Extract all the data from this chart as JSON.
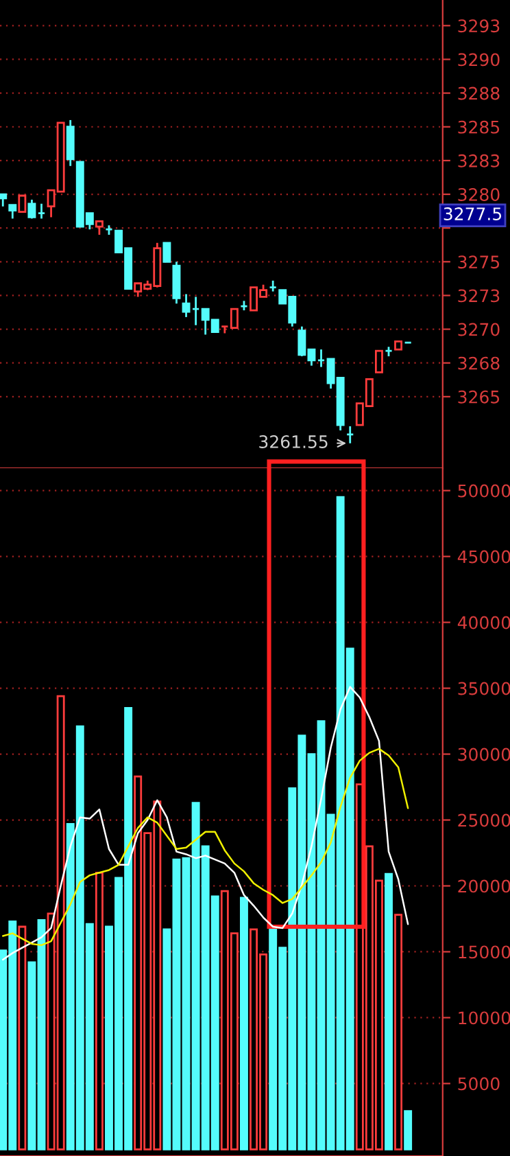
{
  "chart_data": [
    {
      "type": "candlestick",
      "tick_labels": "y",
      "grid": "y",
      "categories": [
        null,
        null,
        null,
        null,
        null,
        null,
        null,
        null,
        null,
        null,
        null,
        null,
        null,
        null,
        null,
        null,
        null,
        null,
        null,
        null,
        null,
        null,
        null,
        null,
        null,
        null,
        null,
        null,
        null,
        null,
        null,
        null,
        null,
        null,
        null,
        null,
        null,
        null,
        null,
        null,
        null,
        null,
        null
      ],
      "ohlc": [
        [
          3280.0,
          3280.0,
          3279.1,
          3279.7
        ],
        [
          3279.2,
          3279.2,
          3278.2,
          3278.8
        ],
        [
          3278.7,
          3279.9,
          3278.7,
          3279.9
        ],
        [
          3279.3,
          3279.6,
          3278.2,
          3278.3
        ],
        [
          3278.6,
          3279.3,
          3278.2,
          3278.6
        ],
        [
          3279.1,
          3280.3,
          3278.3,
          3280.3
        ],
        [
          3280.2,
          3285.3,
          3280.2,
          3285.3
        ],
        [
          3285.0,
          3285.5,
          3282.1,
          3282.6
        ],
        [
          3282.4,
          3282.4,
          3277.6,
          3277.6
        ],
        [
          3278.6,
          3278.6,
          3277.4,
          3277.8
        ],
        [
          3277.6,
          3278.0,
          3277.0,
          3278.0
        ],
        [
          3277.4,
          3277.7,
          3277.0,
          3277.4
        ],
        [
          3277.3,
          3277.3,
          3275.7,
          3275.7
        ],
        [
          3276.0,
          3276.0,
          3273.0,
          3273.0
        ],
        [
          3272.8,
          3273.4,
          3272.4,
          3273.4
        ],
        [
          3273.0,
          3273.6,
          3272.9,
          3273.3
        ],
        [
          3273.2,
          3276.4,
          3273.1,
          3276.0
        ],
        [
          3276.4,
          3276.4,
          3275.0,
          3275.0
        ],
        [
          3274.7,
          3275.0,
          3271.9,
          3272.3
        ],
        [
          3271.9,
          3272.6,
          3270.9,
          3271.3
        ],
        [
          3271.5,
          3272.4,
          3270.3,
          3271.5
        ],
        [
          3271.5,
          3271.5,
          3269.6,
          3270.7
        ],
        [
          3270.7,
          3270.7,
          3269.8,
          3269.8
        ],
        [
          3270.2,
          3270.2,
          3269.7,
          3270.2
        ],
        [
          3270.1,
          3271.5,
          3270.1,
          3271.5
        ],
        [
          3271.7,
          3272.1,
          3271.4,
          3271.7
        ],
        [
          3271.4,
          3273.1,
          3271.4,
          3273.1
        ],
        [
          3272.4,
          3273.3,
          3272.4,
          3272.9
        ],
        [
          3273.1,
          3273.6,
          3272.8,
          3273.1
        ],
        [
          3272.9,
          3272.9,
          3271.9,
          3271.9
        ],
        [
          3272.4,
          3272.4,
          3270.2,
          3270.5
        ],
        [
          3269.9,
          3270.2,
          3268.0,
          3268.1
        ],
        [
          3268.5,
          3268.5,
          3267.3,
          3267.7
        ],
        [
          3267.7,
          3268.5,
          3267.2,
          3267.7
        ],
        [
          3267.8,
          3267.8,
          3265.6,
          3266.0
        ],
        [
          3266.4,
          3266.4,
          3262.5,
          3262.9
        ],
        [
          3262.2,
          3262.8,
          3261.55,
          3262.2
        ],
        [
          3262.9,
          3264.5,
          3262.9,
          3264.5
        ],
        [
          3264.3,
          3266.3,
          3264.3,
          3266.3
        ],
        [
          3266.8,
          3268.4,
          3266.8,
          3268.4
        ],
        [
          3268.4,
          3268.7,
          3268.0,
          3268.4
        ],
        [
          3268.5,
          3269.1,
          3268.5,
          3269.1
        ],
        [
          3269.0,
          3269.0,
          3269.0,
          3269.0
        ]
      ],
      "colors": [
        "#54fcfc",
        "#54fcfc",
        "#ff3c3c",
        "#54fcfc",
        "#54fcfc",
        "#ff3c3c",
        "#ff3c3c",
        "#54fcfc",
        "#54fcfc",
        "#54fcfc",
        "#ff3c3c",
        "#54fcfc",
        "#54fcfc",
        "#54fcfc",
        "#ff3c3c",
        "#ff3c3c",
        "#ff3c3c",
        "#54fcfc",
        "#54fcfc",
        "#54fcfc",
        "#54fcfc",
        "#54fcfc",
        "#54fcfc",
        "#ff3c3c",
        "#ff3c3c",
        "#54fcfc",
        "#ff3c3c",
        "#ff3c3c",
        "#54fcfc",
        "#54fcfc",
        "#54fcfc",
        "#54fcfc",
        "#54fcfc",
        "#54fcfc",
        "#54fcfc",
        "#54fcfc",
        "#54fcfc",
        "#ff3c3c",
        "#ff3c3c",
        "#ff3c3c",
        "#54fcfc",
        "#ff3c3c",
        "#54fcfc"
      ],
      "ylim": [
        3259.7,
        3294.4
      ],
      "yticks": [
        3265,
        {
          "value": 3267.5,
          "label": "3268"
        },
        3270,
        {
          "value": 3272.5,
          "label": "3273"
        },
        3275,
        {
          "value": 3277.5,
          "label": null
        },
        3280,
        {
          "value": 3282.5,
          "label": "3283"
        },
        3285,
        {
          "value": 3287.5,
          "label": "3288"
        },
        3290,
        {
          "value": 3292.5,
          "label": "3293"
        }
      ],
      "annotations": [
        "3261.55",
        "3277.5"
      ]
    },
    {
      "type": "bar",
      "tick_labels": "y",
      "grid": "y",
      "categories": [
        null,
        null,
        null,
        null,
        null,
        null,
        null,
        null,
        null,
        null,
        null,
        null,
        null,
        null,
        null,
        null,
        null,
        null,
        null,
        null,
        null,
        null,
        null,
        null,
        null,
        null,
        null,
        null,
        null,
        null,
        null,
        null,
        null,
        null,
        null,
        null,
        null,
        null,
        null,
        null,
        null,
        null,
        null
      ],
      "series": [
        {
          "type": "bar",
          "colors": [
            "#54fcfc",
            "#54fcfc",
            "#ff3c3c",
            "#54fcfc",
            "#54fcfc",
            "#ff3c3c",
            "#ff3c3c",
            "#54fcfc",
            "#54fcfc",
            "#54fcfc",
            "#ff3c3c",
            "#54fcfc",
            "#54fcfc",
            "#54fcfc",
            "#ff3c3c",
            "#ff3c3c",
            "#ff3c3c",
            "#54fcfc",
            "#54fcfc",
            "#54fcfc",
            "#54fcfc",
            "#54fcfc",
            "#54fcfc",
            "#ff3c3c",
            "#ff3c3c",
            "#54fcfc",
            "#ff3c3c",
            "#ff3c3c",
            "#54fcfc",
            "#54fcfc",
            "#54fcfc",
            "#54fcfc",
            "#54fcfc",
            "#54fcfc",
            "#54fcfc",
            "#54fcfc",
            "#54fcfc",
            "#ff3c3c",
            "#ff3c3c",
            "#ff3c3c",
            "#54fcfc",
            "#ff3c3c",
            "#54fcfc"
          ],
          "values": [
            15100,
            17300,
            16900,
            14200,
            17400,
            17900,
            34400,
            24700,
            32100,
            17100,
            21000,
            16900,
            20600,
            33500,
            28300,
            24000,
            26400,
            16700,
            22000,
            22100,
            26300,
            23000,
            19200,
            19600,
            16400,
            19100,
            16700,
            14800,
            16700,
            15300,
            27400,
            31400,
            30000,
            32500,
            25400,
            49500,
            38000,
            27700,
            23000,
            20400,
            20900,
            17800,
            2900
          ]
        },
        {
          "type": "line",
          "color": "#ffffff",
          "values": [
            14400,
            14900,
            15300,
            15700,
            16100,
            16800,
            20000,
            23000,
            25200,
            25100,
            25800,
            22800,
            21600,
            21600,
            24000,
            25000,
            26500,
            25200,
            22600,
            22400,
            22100,
            22300,
            22000,
            21700,
            21000,
            19300,
            18500,
            17600,
            16900,
            16800,
            17900,
            20100,
            23000,
            26600,
            30500,
            33400,
            35100,
            34300,
            32800,
            31000,
            22600,
            20500,
            17100
          ]
        },
        {
          "type": "line",
          "color": "#f0f000",
          "values": [
            16200,
            16400,
            16000,
            15600,
            15500,
            15800,
            17200,
            18600,
            20300,
            20800,
            21000,
            21200,
            21600,
            23000,
            24400,
            25200,
            24800,
            23800,
            22800,
            22900,
            23500,
            24100,
            24100,
            22700,
            21700,
            21100,
            20200,
            19700,
            19300,
            18700,
            19000,
            19900,
            20800,
            21800,
            23300,
            26000,
            28200,
            29500,
            30100,
            30400,
            29900,
            29000,
            25900
          ]
        }
      ],
      "ylim": [
        -500,
        51700
      ],
      "yticks": [
        5000,
        10000,
        15000,
        20000,
        25000,
        30000,
        35000,
        40000,
        45000,
        50000
      ]
    }
  ]
}
